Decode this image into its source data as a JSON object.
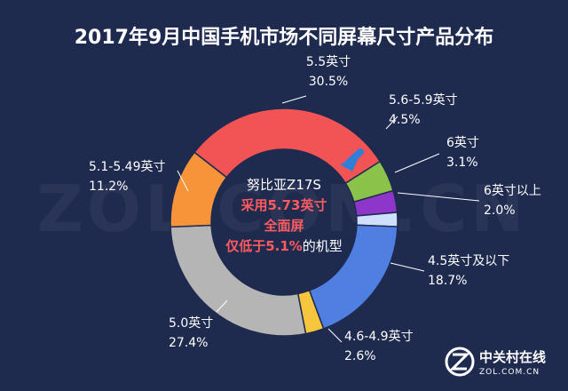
{
  "title": "2017年9月中国手机市场不同屏幕尺寸产品分布",
  "watermark": "ZOL.COM.CN",
  "center_text": {
    "line1": "努比亚Z17S",
    "line2_red": "采用5.73英寸",
    "line3_red": "全面屏",
    "line4_red": "仅低于5.1%",
    "line4_white": "的机型"
  },
  "logo": {
    "main": "中关村在线",
    "sub": "ZOL.COM.CN"
  },
  "chart_data": {
    "type": "pie",
    "title": "2017年9月中国手机市场不同屏幕尺寸产品分布",
    "slices": [
      {
        "name": "5.5英寸",
        "pct_label": "30.5%",
        "value": 30.5,
        "color": "#f25456"
      },
      {
        "name": "5.6-5.9英寸",
        "pct_label": "4.5%",
        "value": 4.5,
        "color": "#8bc34a"
      },
      {
        "name": "6英寸",
        "pct_label": "3.1%",
        "value": 3.1,
        "color": "#8e36c9"
      },
      {
        "name": "6英寸以上",
        "pct_label": "2.0%",
        "value": 2.0,
        "color": "#cfe0ff"
      },
      {
        "name": "4.5英寸及以下",
        "pct_label": "18.7%",
        "value": 18.7,
        "color": "#4f7fe0"
      },
      {
        "name": "4.6-4.9英寸",
        "pct_label": "2.6%",
        "value": 2.6,
        "color": "#f6c63c"
      },
      {
        "name": "5.0英寸",
        "pct_label": "27.4%",
        "value": 27.4,
        "color": "#b5b5b5"
      },
      {
        "name": "5.1-5.49英寸",
        "pct_label": "11.2%",
        "value": 11.2,
        "color": "#f7943a"
      }
    ]
  }
}
